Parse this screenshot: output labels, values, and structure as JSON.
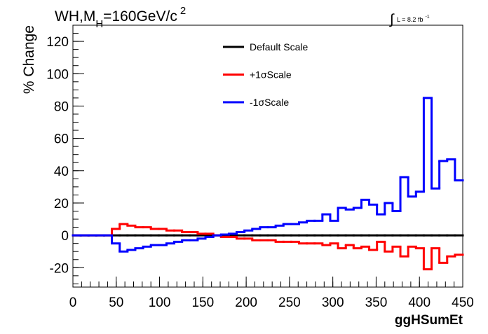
{
  "chart_data": {
    "type": "histogram",
    "title": {
      "main": "WH,M",
      "sub": "H",
      "rest": "=160GeV/c",
      "sup": "2"
    },
    "luminosity": {
      "text": "L = 8.2 fb",
      "sup": "-1"
    },
    "xlabel": "ggHSumEt",
    "ylabel": "% Change",
    "bins": [
      0,
      9,
      18,
      27,
      36,
      45,
      54,
      63,
      72,
      81,
      90,
      99,
      108,
      117,
      126,
      135,
      144,
      153,
      162,
      171,
      180,
      189,
      198,
      207,
      216,
      225,
      234,
      243,
      252,
      261,
      270,
      279,
      288,
      297,
      306,
      315,
      324,
      333,
      342,
      351,
      360,
      369,
      378,
      387,
      396,
      405,
      414,
      423,
      432,
      441,
      450
    ],
    "series": [
      {
        "name": "Default Scale",
        "color": "#000000",
        "values": [
          0,
          0,
          0,
          0,
          0,
          0,
          0,
          0,
          0,
          0,
          0,
          0,
          0,
          0,
          0,
          0,
          0,
          0,
          0,
          0,
          0,
          0,
          0,
          0,
          0,
          0,
          0,
          0,
          0,
          0,
          0,
          0,
          0,
          0,
          0,
          0,
          0,
          0,
          0,
          0,
          0,
          0,
          0,
          0,
          0,
          0,
          0,
          0,
          0,
          0
        ]
      },
      {
        "name": "+1σScale",
        "color": "#ff0000",
        "values": [
          0,
          0,
          0,
          0,
          0,
          4,
          7,
          6,
          5,
          5,
          4,
          4,
          3,
          3,
          2,
          2,
          1,
          1,
          0,
          -1,
          -1,
          -2,
          -2,
          -3,
          -3,
          -3,
          -4,
          -4,
          -4,
          -5,
          -5,
          -5,
          -6,
          -5,
          -8,
          -6,
          -8,
          -7,
          -9,
          -4,
          -10,
          -7,
          -13,
          -7,
          -8,
          -21,
          -8,
          -17,
          -13,
          -12
        ]
      },
      {
        "name": "-1σScale",
        "color": "#0000ff",
        "values": [
          0,
          0,
          0,
          0,
          0,
          -5,
          -10,
          -9,
          -8,
          -7,
          -6,
          -6,
          -5,
          -4,
          -3,
          -3,
          -2,
          -1,
          0,
          0.5,
          1,
          2,
          3,
          4,
          5,
          5,
          6,
          7,
          7,
          8,
          9,
          9,
          13,
          9,
          17,
          16,
          17,
          22,
          19,
          13,
          20,
          15,
          36,
          24,
          27,
          85,
          29,
          46,
          47,
          34
        ]
      }
    ],
    "xlim": [
      0,
      450
    ],
    "xticks": [
      0,
      50,
      100,
      150,
      200,
      250,
      300,
      350,
      400,
      450
    ],
    "ylim": [
      -32,
      130
    ],
    "yticks": [
      -20,
      0,
      20,
      40,
      60,
      80,
      100,
      120
    ],
    "legend": "top"
  }
}
